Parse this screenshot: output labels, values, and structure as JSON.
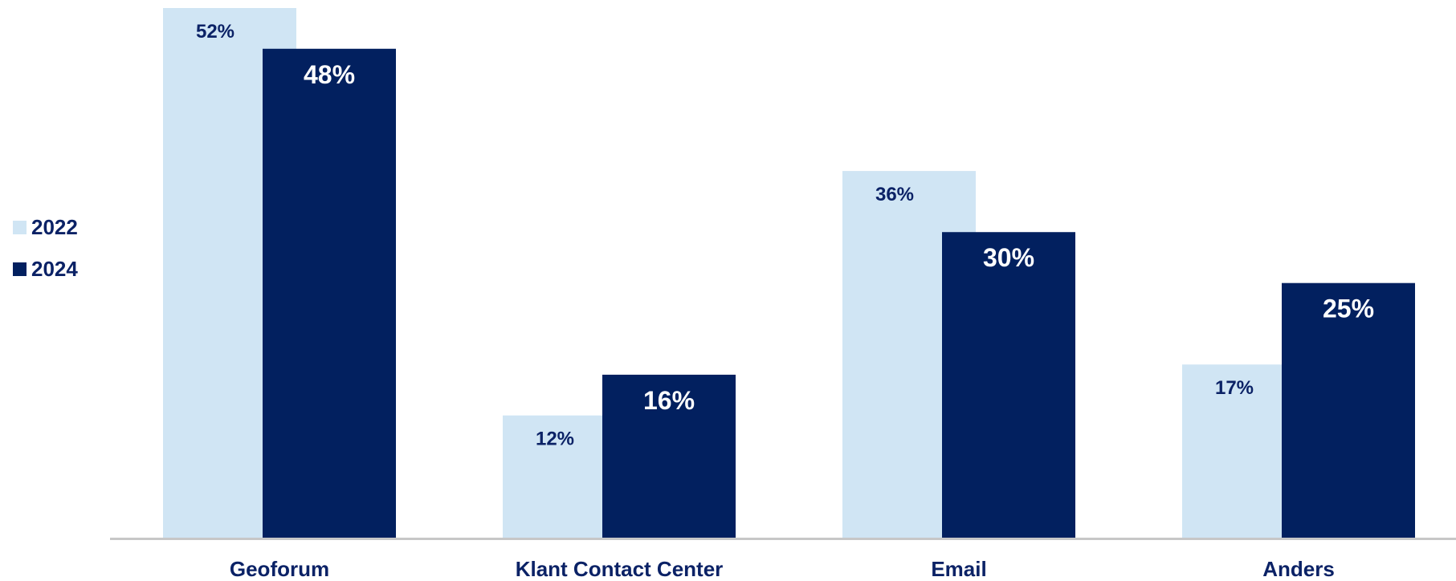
{
  "chart_data": {
    "type": "bar",
    "categories": [
      "Geoforum",
      "Klant Contact Center",
      "Email",
      "Anders"
    ],
    "series": [
      {
        "name": "2022",
        "values": [
          52,
          12,
          36,
          17
        ],
        "labels": [
          "52%",
          "12%",
          "36%",
          "17%"
        ],
        "color": "#d0e5f4"
      },
      {
        "name": "2024",
        "values": [
          48,
          16,
          30,
          25
        ],
        "labels": [
          "48%",
          "16%",
          "30%",
          "25%"
        ],
        "color": "#02205f"
      }
    ],
    "unit": "%",
    "ylim": [
      0,
      52
    ],
    "grid": false,
    "legend_position": "left",
    "axis_color": "#c7c7c7",
    "label_color_light_series": "#0b2266",
    "label_color_dark_series": "#ffffff",
    "category_label_color": "#0b2266"
  }
}
